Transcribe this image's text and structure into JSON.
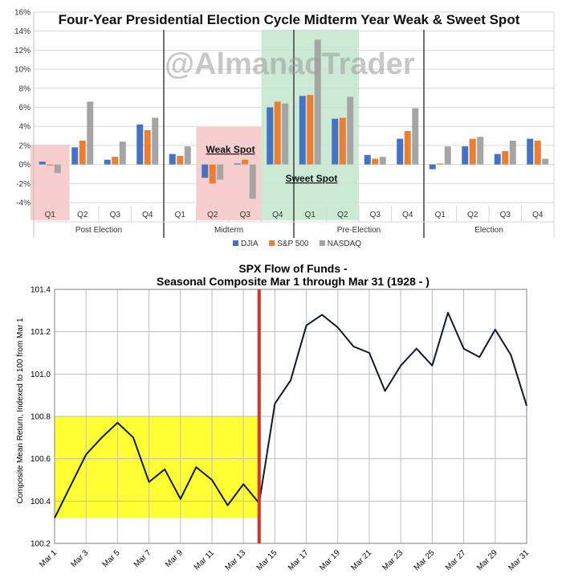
{
  "chart_data": [
    {
      "type": "bar",
      "title": "Four-Year Presidential Election Cycle Midterm Year Weak & Sweet Spot",
      "watermark": "@AlmanacTrader",
      "ylim": [
        -4,
        16
      ],
      "yticks": [
        "-4%",
        "-2%",
        "0%",
        "2%",
        "4%",
        "6%",
        "8%",
        "10%",
        "12%",
        "14%",
        "16%"
      ],
      "grid": true,
      "legend_position": "bottom",
      "categories": [
        "Q1",
        "Q2",
        "Q3",
        "Q4",
        "Q1",
        "Q2",
        "Q3",
        "Q4",
        "Q1",
        "Q2",
        "Q3",
        "Q4",
        "Q1",
        "Q2",
        "Q3",
        "Q4"
      ],
      "groups": [
        "Post Election",
        "Midterm",
        "Pre-Election",
        "Election"
      ],
      "series": [
        {
          "name": "DJIA",
          "color": "#4472c4",
          "values": [
            0.3,
            1.8,
            0.5,
            4.2,
            1.1,
            -1.4,
            0.1,
            6.0,
            7.2,
            4.8,
            1.0,
            2.7,
            -0.5,
            1.9,
            1.1,
            2.7
          ]
        },
        {
          "name": "S&P 500",
          "color": "#ed7d31",
          "values": [
            -0.1,
            2.5,
            0.8,
            3.6,
            0.9,
            -2.0,
            0.5,
            6.6,
            7.3,
            4.9,
            0.6,
            3.5,
            0.1,
            2.7,
            1.4,
            2.5
          ]
        },
        {
          "name": "NASDAQ",
          "color": "#a5a5a5",
          "values": [
            -0.9,
            6.6,
            2.4,
            4.9,
            1.9,
            -1.6,
            -3.6,
            6.4,
            13.1,
            7.1,
            0.8,
            5.9,
            1.9,
            2.9,
            2.5,
            0.6
          ]
        }
      ],
      "annotations": [
        "Weak Spot",
        "Sweet Spot"
      ]
    },
    {
      "type": "line",
      "title": "SPX Flow of Funds -",
      "subtitle": "Seasonal Composite Mar 1 through Mar 31 (1928 - )",
      "ylabel": "Composite Mean Return, Indexed to 100 from Mar 1",
      "ylim": [
        100.2,
        101.4
      ],
      "yticks": [
        "100.2",
        "100.4",
        "100.6",
        "100.8",
        "101.0",
        "101.2",
        "101.4"
      ],
      "xticks": [
        "Mar 1",
        "Mar 3",
        "Mar 5",
        "Mar 7",
        "Mar 9",
        "Mar 11",
        "Mar 13",
        "Mar 15",
        "Mar 17",
        "Mar 19",
        "Mar 21",
        "Mar 23",
        "Mar 25",
        "Mar 27",
        "Mar 29",
        "Mar 31"
      ],
      "grid": true,
      "x": [
        1,
        2,
        3,
        4,
        5,
        6,
        7,
        8,
        9,
        10,
        11,
        12,
        13,
        14,
        15,
        16,
        17,
        18,
        19,
        20,
        21,
        22,
        23,
        24,
        25,
        26,
        27,
        28,
        29,
        30,
        31
      ],
      "values": [
        100.32,
        100.47,
        100.62,
        100.7,
        100.77,
        100.7,
        100.49,
        100.55,
        100.41,
        100.56,
        100.5,
        100.38,
        100.48,
        100.39,
        100.86,
        100.97,
        101.23,
        101.28,
        101.22,
        101.13,
        101.1,
        100.92,
        101.04,
        101.12,
        101.04,
        101.29,
        101.12,
        101.08,
        101.21,
        101.09,
        100.85
      ],
      "line_color": "#0d1b2e",
      "highlight_color": "#ffff33",
      "highlight_y_range": [
        100.32,
        100.8
      ],
      "highlight_x_range": [
        1,
        14
      ],
      "marker_color": "#d9312b",
      "marker_x": 14
    }
  ]
}
